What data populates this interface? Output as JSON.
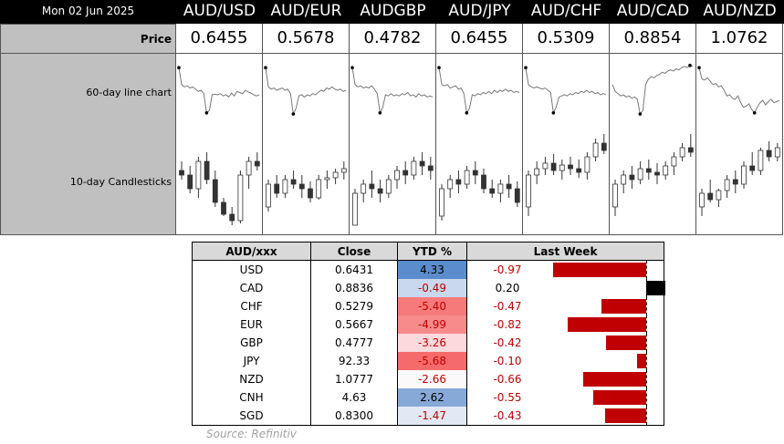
{
  "header": {
    "date": "Mon 02 Jun 2025"
  },
  "row_labels": {
    "price": "Price",
    "line": "60-day line chart",
    "candles": "10-day Candlesticks"
  },
  "pairs": [
    {
      "name": "AUD/USD",
      "price": "0.6455",
      "line": [
        10,
        40,
        44,
        42,
        46,
        44,
        48,
        52,
        50,
        56,
        90,
        86,
        58,
        57,
        58,
        56,
        60,
        58,
        62,
        55,
        60,
        52,
        54,
        56,
        50,
        53,
        55,
        58,
        60,
        58
      ]
    },
    {
      "name": "AUD/EUR",
      "price": "0.5678",
      "line": [
        10,
        44,
        48,
        46,
        50,
        48,
        46,
        50,
        48,
        56,
        92,
        82,
        60,
        58,
        62,
        58,
        60,
        56,
        58,
        54,
        50,
        52,
        46,
        48,
        44,
        48,
        50,
        48,
        52,
        50
      ]
    },
    {
      "name": "AUDGBP",
      "price": "0.4782",
      "line": [
        10,
        40,
        44,
        42,
        46,
        44,
        46,
        42,
        48,
        56,
        90,
        80,
        58,
        60,
        56,
        60,
        58,
        60,
        56,
        58,
        54,
        60,
        58,
        62,
        56,
        60,
        58,
        62,
        60,
        62
      ]
    },
    {
      "name": "AUD/JPY",
      "price": "0.6455",
      "line": [
        10,
        40,
        42,
        40,
        46,
        44,
        42,
        48,
        46,
        56,
        90,
        82,
        58,
        60,
        56,
        58,
        54,
        56,
        52,
        56,
        50,
        54,
        50,
        52,
        48,
        52,
        50,
        54,
        52,
        54
      ]
    },
    {
      "name": "AUD/CHF",
      "price": "0.5309",
      "line": [
        10,
        40,
        44,
        46,
        44,
        46,
        48,
        46,
        50,
        54,
        90,
        80,
        62,
        60,
        58,
        60,
        56,
        58,
        54,
        56,
        52,
        54,
        50,
        54,
        52,
        56,
        54,
        58,
        56,
        58
      ]
    },
    {
      "name": "AUD/CAD",
      "price": "0.8854",
      "line": [
        40,
        52,
        56,
        60,
        58,
        62,
        60,
        64,
        62,
        66,
        92,
        86,
        40,
        30,
        26,
        28,
        24,
        22,
        18,
        20,
        16,
        14,
        16,
        12,
        14,
        10,
        8,
        10,
        6,
        8
      ]
    },
    {
      "name": "AUD/NZD",
      "price": "1.0762",
      "line": [
        10,
        30,
        32,
        28,
        34,
        40,
        38,
        44,
        42,
        50,
        60,
        58,
        64,
        66,
        60,
        72,
        80,
        78,
        74,
        84,
        90,
        80,
        72,
        68,
        76,
        70,
        66,
        72,
        70,
        68
      ]
    }
  ],
  "candles": [
    [
      [
        60,
        70,
        50,
        55
      ],
      [
        55,
        65,
        35,
        40
      ],
      [
        40,
        75,
        30,
        70
      ],
      [
        70,
        80,
        45,
        50
      ],
      [
        50,
        60,
        20,
        25
      ],
      [
        25,
        30,
        10,
        12
      ],
      [
        12,
        20,
        0,
        5
      ],
      [
        5,
        60,
        2,
        55
      ],
      [
        55,
        75,
        40,
        70
      ],
      [
        70,
        80,
        60,
        65
      ]
    ],
    [
      [
        20,
        50,
        15,
        45
      ],
      [
        45,
        55,
        30,
        35
      ],
      [
        35,
        55,
        30,
        50
      ],
      [
        50,
        60,
        40,
        45
      ],
      [
        45,
        55,
        30,
        40
      ],
      [
        40,
        48,
        25,
        30
      ],
      [
        30,
        55,
        28,
        50
      ],
      [
        50,
        60,
        40,
        52
      ],
      [
        52,
        62,
        45,
        58
      ],
      [
        58,
        70,
        50,
        62
      ]
    ],
    [
      [
        0,
        40,
        0,
        35
      ],
      [
        35,
        50,
        25,
        45
      ],
      [
        45,
        60,
        30,
        40
      ],
      [
        40,
        50,
        25,
        35
      ],
      [
        35,
        55,
        30,
        50
      ],
      [
        50,
        65,
        40,
        60
      ],
      [
        60,
        70,
        45,
        55
      ],
      [
        55,
        75,
        50,
        70
      ],
      [
        70,
        80,
        55,
        65
      ],
      [
        65,
        75,
        50,
        60
      ]
    ],
    [
      [
        10,
        45,
        5,
        40
      ],
      [
        40,
        55,
        30,
        50
      ],
      [
        50,
        60,
        35,
        45
      ],
      [
        45,
        65,
        40,
        60
      ],
      [
        60,
        70,
        45,
        55
      ],
      [
        55,
        62,
        35,
        40
      ],
      [
        40,
        50,
        30,
        35
      ],
      [
        35,
        50,
        25,
        45
      ],
      [
        45,
        55,
        30,
        40
      ],
      [
        40,
        48,
        20,
        25
      ]
    ],
    [
      [
        20,
        60,
        10,
        55
      ],
      [
        55,
        70,
        45,
        62
      ],
      [
        62,
        75,
        55,
        68
      ],
      [
        68,
        78,
        55,
        60
      ],
      [
        60,
        72,
        50,
        66
      ],
      [
        66,
        75,
        55,
        62
      ],
      [
        62,
        72,
        52,
        58
      ],
      [
        58,
        80,
        50,
        75
      ],
      [
        75,
        95,
        70,
        90
      ],
      [
        90,
        100,
        78,
        82
      ]
    ],
    [
      [
        20,
        50,
        10,
        45
      ],
      [
        45,
        60,
        35,
        55
      ],
      [
        55,
        65,
        40,
        50
      ],
      [
        50,
        70,
        45,
        62
      ],
      [
        62,
        72,
        50,
        58
      ],
      [
        58,
        68,
        45,
        55
      ],
      [
        55,
        70,
        50,
        65
      ],
      [
        65,
        80,
        55,
        75
      ],
      [
        75,
        90,
        70,
        85
      ],
      [
        85,
        100,
        75,
        80
      ]
    ],
    [
      [
        20,
        40,
        10,
        35
      ],
      [
        35,
        50,
        25,
        28
      ],
      [
        28,
        40,
        20,
        38
      ],
      [
        38,
        55,
        30,
        50
      ],
      [
        50,
        60,
        35,
        45
      ],
      [
        45,
        70,
        40,
        65
      ],
      [
        65,
        80,
        55,
        60
      ],
      [
        60,
        85,
        55,
        82
      ],
      [
        82,
        92,
        70,
        75
      ],
      [
        75,
        90,
        70,
        85
      ]
    ]
  ],
  "table": {
    "headers": [
      "AUD/xxx",
      "Close",
      "YTD %",
      "Last Week"
    ],
    "rows": [
      {
        "ccy": "USD",
        "close": "0.6431",
        "ytd": "4.33",
        "ytd_bg": "#5b8ccc",
        "lw": "-0.97",
        "lw_val": -0.97
      },
      {
        "ccy": "CAD",
        "close": "0.8836",
        "ytd": "-0.49",
        "ytd_bg": "#c9d8ee",
        "lw": "0.20",
        "lw_val": 0.2
      },
      {
        "ccy": "CHF",
        "close": "0.5279",
        "ytd": "-5.40",
        "ytd_bg": "#f67a7a",
        "lw": "-0.47",
        "lw_val": -0.47
      },
      {
        "ccy": "EUR",
        "close": "0.5667",
        "ytd": "-4.99",
        "ytd_bg": "#f78b8b",
        "lw": "-0.82",
        "lw_val": -0.82
      },
      {
        "ccy": "GBP",
        "close": "0.4777",
        "ytd": "-3.26",
        "ytd_bg": "#fbd9dc",
        "lw": "-0.42",
        "lw_val": -0.42
      },
      {
        "ccy": "JPY",
        "close": "92.33",
        "ytd": "-5.68",
        "ytd_bg": "#f56b6b",
        "lw": "-0.10",
        "lw_val": -0.1
      },
      {
        "ccy": "NZD",
        "close": "1.0777",
        "ytd": "-2.66",
        "ytd_bg": "#fcf9fb",
        "lw": "-0.66",
        "lw_val": -0.66
      },
      {
        "ccy": "CNH",
        "close": "4.63",
        "ytd": "2.62",
        "ytd_bg": "#87a9d8",
        "lw": "-0.55",
        "lw_val": -0.55
      },
      {
        "ccy": "SGD",
        "close": "0.8300",
        "ytd": "-1.47",
        "ytd_bg": "#e2e9f5",
        "lw": "-0.43",
        "lw_val": -0.43
      }
    ]
  },
  "source": {
    "label": "Source:",
    "value": "Refinitiv"
  },
  "colors": {
    "neg_bar": "#c00000",
    "pos_bar": "#000000",
    "neg_text": "#c00000"
  }
}
